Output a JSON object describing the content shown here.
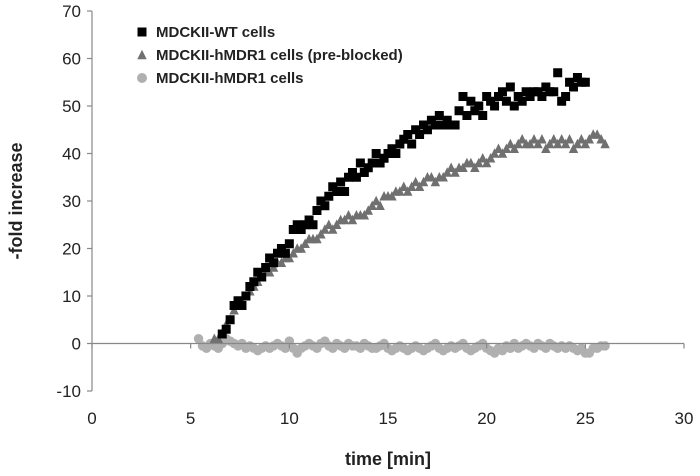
{
  "chart_data": {
    "type": "scatter",
    "xlabel": "time [min]",
    "ylabel": "-fold increase",
    "xlim": [
      0,
      30
    ],
    "ylim": [
      -10,
      70
    ],
    "xticks": [
      "0",
      "5",
      "10",
      "15",
      "20",
      "25",
      "30"
    ],
    "yticks": [
      "-10",
      "0",
      "10",
      "20",
      "30",
      "40",
      "50",
      "60",
      "70"
    ],
    "grid": false,
    "legend_position": "top-left",
    "series": [
      {
        "name": "MDCKII-WT cells",
        "marker": "square",
        "color": "#000000",
        "x": [
          6.6,
          6.8,
          7.0,
          7.2,
          7.4,
          7.6,
          7.8,
          8.0,
          8.2,
          8.4,
          8.6,
          8.8,
          9.0,
          9.2,
          9.4,
          9.6,
          9.8,
          10.0,
          10.2,
          10.4,
          10.6,
          10.8,
          11.0,
          11.2,
          11.4,
          11.6,
          11.8,
          12.0,
          12.2,
          12.4,
          12.6,
          12.8,
          13.0,
          13.2,
          13.4,
          13.6,
          13.8,
          14.0,
          14.2,
          14.4,
          14.6,
          14.8,
          15.0,
          15.2,
          15.4,
          15.6,
          15.8,
          16.0,
          16.2,
          16.4,
          16.6,
          16.8,
          17.0,
          17.2,
          17.4,
          17.6,
          17.8,
          18.0,
          18.2,
          18.4,
          18.6,
          18.8,
          19.0,
          19.2,
          19.4,
          19.6,
          19.8,
          20.0,
          20.2,
          20.4,
          20.6,
          20.8,
          21.0,
          21.2,
          21.4,
          21.6,
          21.8,
          22.0,
          22.2,
          22.4,
          22.6,
          22.8,
          23.0,
          23.2,
          23.4,
          23.6,
          23.8,
          24.0,
          24.2,
          24.4,
          24.6,
          24.8,
          25.0
        ],
        "y": [
          2,
          3,
          5,
          8,
          9,
          8,
          10,
          12,
          13,
          15,
          14,
          16,
          18,
          17,
          19,
          20,
          19,
          21,
          24,
          25,
          24,
          25,
          26,
          25,
          28,
          30,
          29,
          31,
          33,
          32,
          34,
          32,
          35,
          36,
          35,
          38,
          36,
          37,
          38,
          40,
          38,
          39,
          40,
          41,
          40,
          42,
          43,
          44,
          42,
          45,
          44,
          46,
          45,
          47,
          46,
          48,
          46,
          47,
          46,
          46,
          49,
          52,
          48,
          51,
          49,
          50,
          48,
          52,
          51,
          50,
          52,
          53,
          51,
          54,
          50,
          52,
          51,
          53,
          52,
          53,
          53,
          52,
          54,
          53,
          53,
          57,
          51,
          52,
          55,
          54,
          56,
          55,
          55
        ]
      },
      {
        "name": "MDCKII-hMDR1 cells (pre-blocked)",
        "marker": "triangle",
        "color": "#707070",
        "x": [
          6.2,
          6.4,
          6.6,
          6.8,
          7.0,
          7.2,
          7.4,
          7.6,
          7.8,
          8.0,
          8.2,
          8.4,
          8.6,
          8.8,
          9.0,
          9.2,
          9.4,
          9.6,
          9.8,
          10.0,
          10.2,
          10.4,
          10.6,
          10.8,
          11.0,
          11.2,
          11.4,
          11.6,
          11.8,
          12.0,
          12.2,
          12.4,
          12.6,
          12.8,
          13.0,
          13.2,
          13.4,
          13.6,
          13.8,
          14.0,
          14.2,
          14.4,
          14.6,
          14.8,
          15.0,
          15.2,
          15.4,
          15.6,
          15.8,
          16.0,
          16.2,
          16.4,
          16.6,
          16.8,
          17.0,
          17.2,
          17.4,
          17.6,
          17.8,
          18.0,
          18.2,
          18.4,
          18.6,
          18.8,
          19.0,
          19.2,
          19.4,
          19.6,
          19.8,
          20.0,
          20.2,
          20.4,
          20.6,
          20.8,
          21.0,
          21.2,
          21.4,
          21.6,
          21.8,
          22.0,
          22.2,
          22.4,
          22.6,
          22.8,
          23.0,
          23.2,
          23.4,
          23.6,
          23.8,
          24.0,
          24.2,
          24.4,
          24.6,
          24.8,
          25.0,
          25.2,
          25.4,
          25.6,
          25.8,
          26.0
        ],
        "y": [
          1,
          1,
          2,
          4,
          5,
          7,
          8,
          9,
          10,
          11,
          12,
          13,
          14,
          15,
          15,
          16,
          17,
          17,
          18,
          18,
          19,
          20,
          20,
          21,
          22,
          22,
          22,
          23,
          24,
          25,
          24,
          25,
          26,
          26,
          27,
          26,
          27,
          27,
          27,
          28,
          29,
          30,
          29,
          31,
          31,
          31,
          32,
          32,
          33,
          32,
          33,
          34,
          33,
          34,
          35,
          35,
          34,
          35,
          35,
          36,
          37,
          36,
          37,
          37,
          38,
          38,
          37,
          38,
          39,
          38,
          39,
          40,
          41,
          40,
          41,
          42,
          41,
          42,
          43,
          42,
          42,
          43,
          42,
          43,
          41,
          42,
          43,
          42,
          43,
          42,
          43,
          41,
          42,
          43,
          42,
          43,
          44,
          44,
          43,
          42
        ]
      },
      {
        "name": "MDCKII-hMDR1 cells",
        "marker": "circle",
        "color": "#b0b0b0",
        "x": [
          5.4,
          5.6,
          5.8,
          6.0,
          6.2,
          6.4,
          6.6,
          6.8,
          7.0,
          7.2,
          7.4,
          7.6,
          7.8,
          8.0,
          8.2,
          8.4,
          8.6,
          8.8,
          9.0,
          9.2,
          9.4,
          9.6,
          9.8,
          10.0,
          10.2,
          10.4,
          10.6,
          10.8,
          11.0,
          11.2,
          11.4,
          11.6,
          11.8,
          12.0,
          12.2,
          12.4,
          12.6,
          12.8,
          13.0,
          13.2,
          13.4,
          13.6,
          13.8,
          14.0,
          14.2,
          14.4,
          14.6,
          14.8,
          15.0,
          15.2,
          15.4,
          15.6,
          15.8,
          16.0,
          16.2,
          16.4,
          16.6,
          16.8,
          17.0,
          17.2,
          17.4,
          17.6,
          17.8,
          18.0,
          18.2,
          18.4,
          18.6,
          18.8,
          19.0,
          19.2,
          19.4,
          19.6,
          19.8,
          20.0,
          20.2,
          20.4,
          20.6,
          20.8,
          21.0,
          21.2,
          21.4,
          21.6,
          21.8,
          22.0,
          22.2,
          22.4,
          22.6,
          22.8,
          23.0,
          23.2,
          23.4,
          23.6,
          23.8,
          24.0,
          24.2,
          24.4,
          24.6,
          24.8,
          25.0,
          25.2,
          25.4,
          25.6,
          25.8,
          26.0
        ],
        "y": [
          1,
          -0.5,
          -1,
          0,
          -0.5,
          -1,
          0,
          1,
          0.5,
          0,
          -0.5,
          0,
          -1,
          -0.5,
          -1,
          -1.5,
          -1,
          -0.5,
          -1,
          -0.5,
          0,
          -0.5,
          -1,
          0.5,
          -1,
          -2,
          -1,
          -0.5,
          0,
          -0.5,
          -1,
          0,
          0.5,
          -0.5,
          -1,
          0,
          -0.5,
          -1,
          0,
          -0.5,
          -0.5,
          -1,
          0,
          -0.5,
          -1,
          -1,
          -0.5,
          0,
          -1,
          -1.5,
          -1,
          -0.5,
          -1,
          -1.5,
          -1,
          -0.5,
          -1,
          -1.5,
          -1,
          -0.5,
          0,
          -1,
          -1.5,
          -1,
          -0.5,
          -1,
          -0.5,
          0,
          -1,
          -1.5,
          -1,
          -0.5,
          0,
          -1,
          -1.5,
          -2,
          -1,
          -1.5,
          -0.5,
          -1,
          0,
          -1,
          -0.5,
          0,
          -0.5,
          -1,
          0,
          -0.5,
          -1,
          0,
          -0.5,
          -1,
          -0.5,
          -1,
          -0.5,
          -1,
          -1.5,
          -1,
          -2,
          -2,
          -1,
          -1,
          -0.5,
          -0.5
        ]
      }
    ]
  }
}
